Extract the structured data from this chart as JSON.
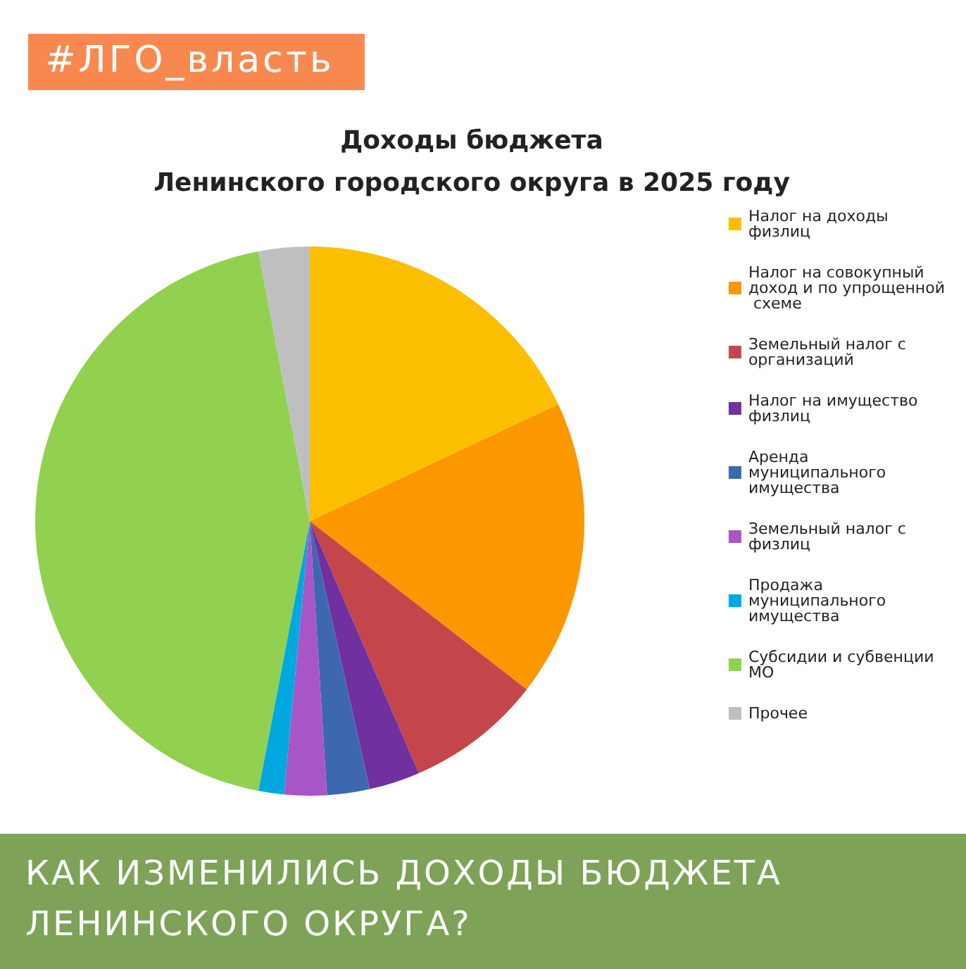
{
  "chart_data": {
    "type": "pie",
    "title": "Доходы бюджета\nЛенинского городского округа в 2025 году",
    "categories": [
      "Налог на доходы физлиц",
      "Налог на совокупный доход и по упрощенной схеме",
      "Земельный налог с организаций",
      "Налог на имущество физлиц",
      "Аренда муниципального имущества",
      "Земельный налог с физлиц",
      "Продажа муниципального имущества",
      "Субсидии и субвенции МО",
      "Прочее"
    ],
    "values": [
      18,
      17.5,
      8,
      3,
      2.5,
      2.5,
      1.5,
      44,
      3
    ],
    "colors": [
      "#fbbf00",
      "#fb9800",
      "#c4464a",
      "#7030a0",
      "#3d68b0",
      "#a855c8",
      "#00a8e0",
      "#92d050",
      "#bfbfbf"
    ],
    "legend": "right",
    "annotations": [
      "#ЛГО_власть",
      "КАК ИЗМЕНИЛИСЬ ДОХОДЫ БЮДЖЕТА ЛЕНИНСКОГО ОКРУГА?"
    ]
  }
}
